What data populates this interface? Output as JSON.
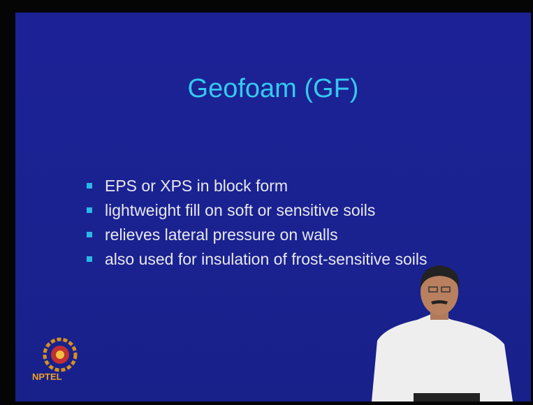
{
  "slide": {
    "title": "Geofoam (GF)",
    "bullets": [
      "EPS or XPS in block form",
      "lightweight fill on soft or sensitive soils",
      "relieves lateral pressure on walls",
      "also used for insulation of frost-sensitive soils"
    ],
    "logo": "NPTEL"
  }
}
